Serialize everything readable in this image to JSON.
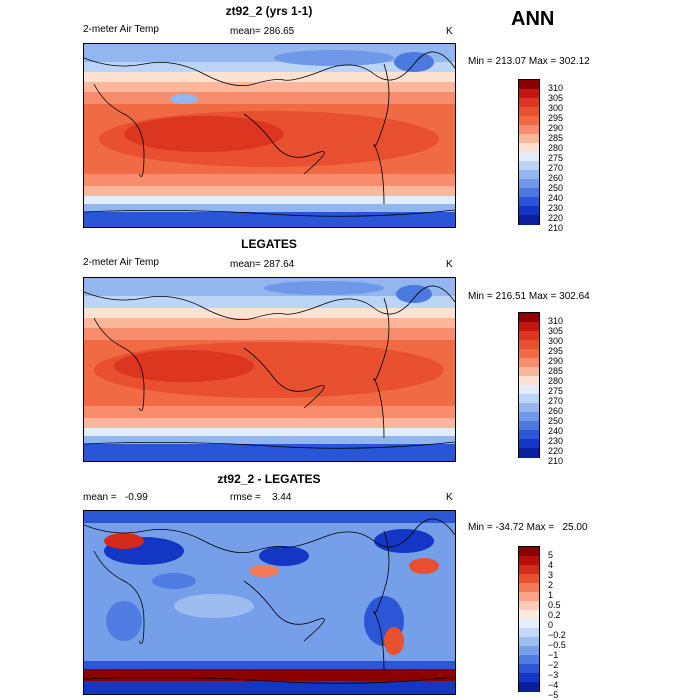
{
  "season": "ANN",
  "panels": [
    {
      "title": "zt92_2 (yrs 1-1)",
      "left_label": "2-meter Air Temp",
      "center_label": "mean= 286.65",
      "units": "K",
      "minmax": "Min = 213.07 Max = 302.12",
      "colorbar": {
        "labels": [
          "310",
          "305",
          "300",
          "295",
          "290",
          "285",
          "280",
          "275",
          "270",
          "260",
          "250",
          "240",
          "230",
          "220",
          "210"
        ],
        "colors": [
          "#8b0000",
          "#c4150e",
          "#dc3520",
          "#e8502f",
          "#f06a43",
          "#f78d6c",
          "#fbb79c",
          "#fde2d2",
          "#e2ecfa",
          "#bcd4f6",
          "#93b6ef",
          "#6f98e8",
          "#4c79e0",
          "#2a55d6",
          "#1136c8",
          "#0a1f9c"
        ]
      }
    },
    {
      "title": "LEGATES",
      "left_label": "2-meter Air Temp",
      "center_label": "mean= 287.64",
      "units": "K",
      "minmax": "Min = 216.51 Max = 302.64",
      "colorbar": {
        "labels": [
          "310",
          "305",
          "300",
          "295",
          "290",
          "285",
          "280",
          "275",
          "270",
          "260",
          "250",
          "240",
          "230",
          "220",
          "210"
        ],
        "colors": [
          "#8b0000",
          "#c4150e",
          "#dc3520",
          "#e8502f",
          "#f06a43",
          "#f78d6c",
          "#fbb79c",
          "#fde2d2",
          "#e2ecfa",
          "#bcd4f6",
          "#93b6ef",
          "#6f98e8",
          "#4c79e0",
          "#2a55d6",
          "#1136c8",
          "#0a1f9c"
        ]
      }
    },
    {
      "title": "zt92_2 - LEGATES",
      "left_label": "mean =   -0.99",
      "center_label": "rmse =    3.44",
      "units": "K",
      "minmax": "Min = -34.72 Max =   25.00",
      "colorbar": {
        "labels": [
          "5",
          "4",
          "3",
          "2",
          "1",
          "0.5",
          "0.2",
          "0",
          "−0.2",
          "−0.5",
          "−1",
          "−2",
          "−3",
          "−4",
          "−5"
        ],
        "colors": [
          "#8b0000",
          "#b80f0a",
          "#d42a1c",
          "#e8502f",
          "#f47a58",
          "#f9a486",
          "#fccab6",
          "#fde9df",
          "#e4eefb",
          "#c3d8f7",
          "#9dbdf1",
          "#769fea",
          "#4f7de2",
          "#2b57d6",
          "#1436c4",
          "#0a1f9c"
        ]
      }
    }
  ]
}
